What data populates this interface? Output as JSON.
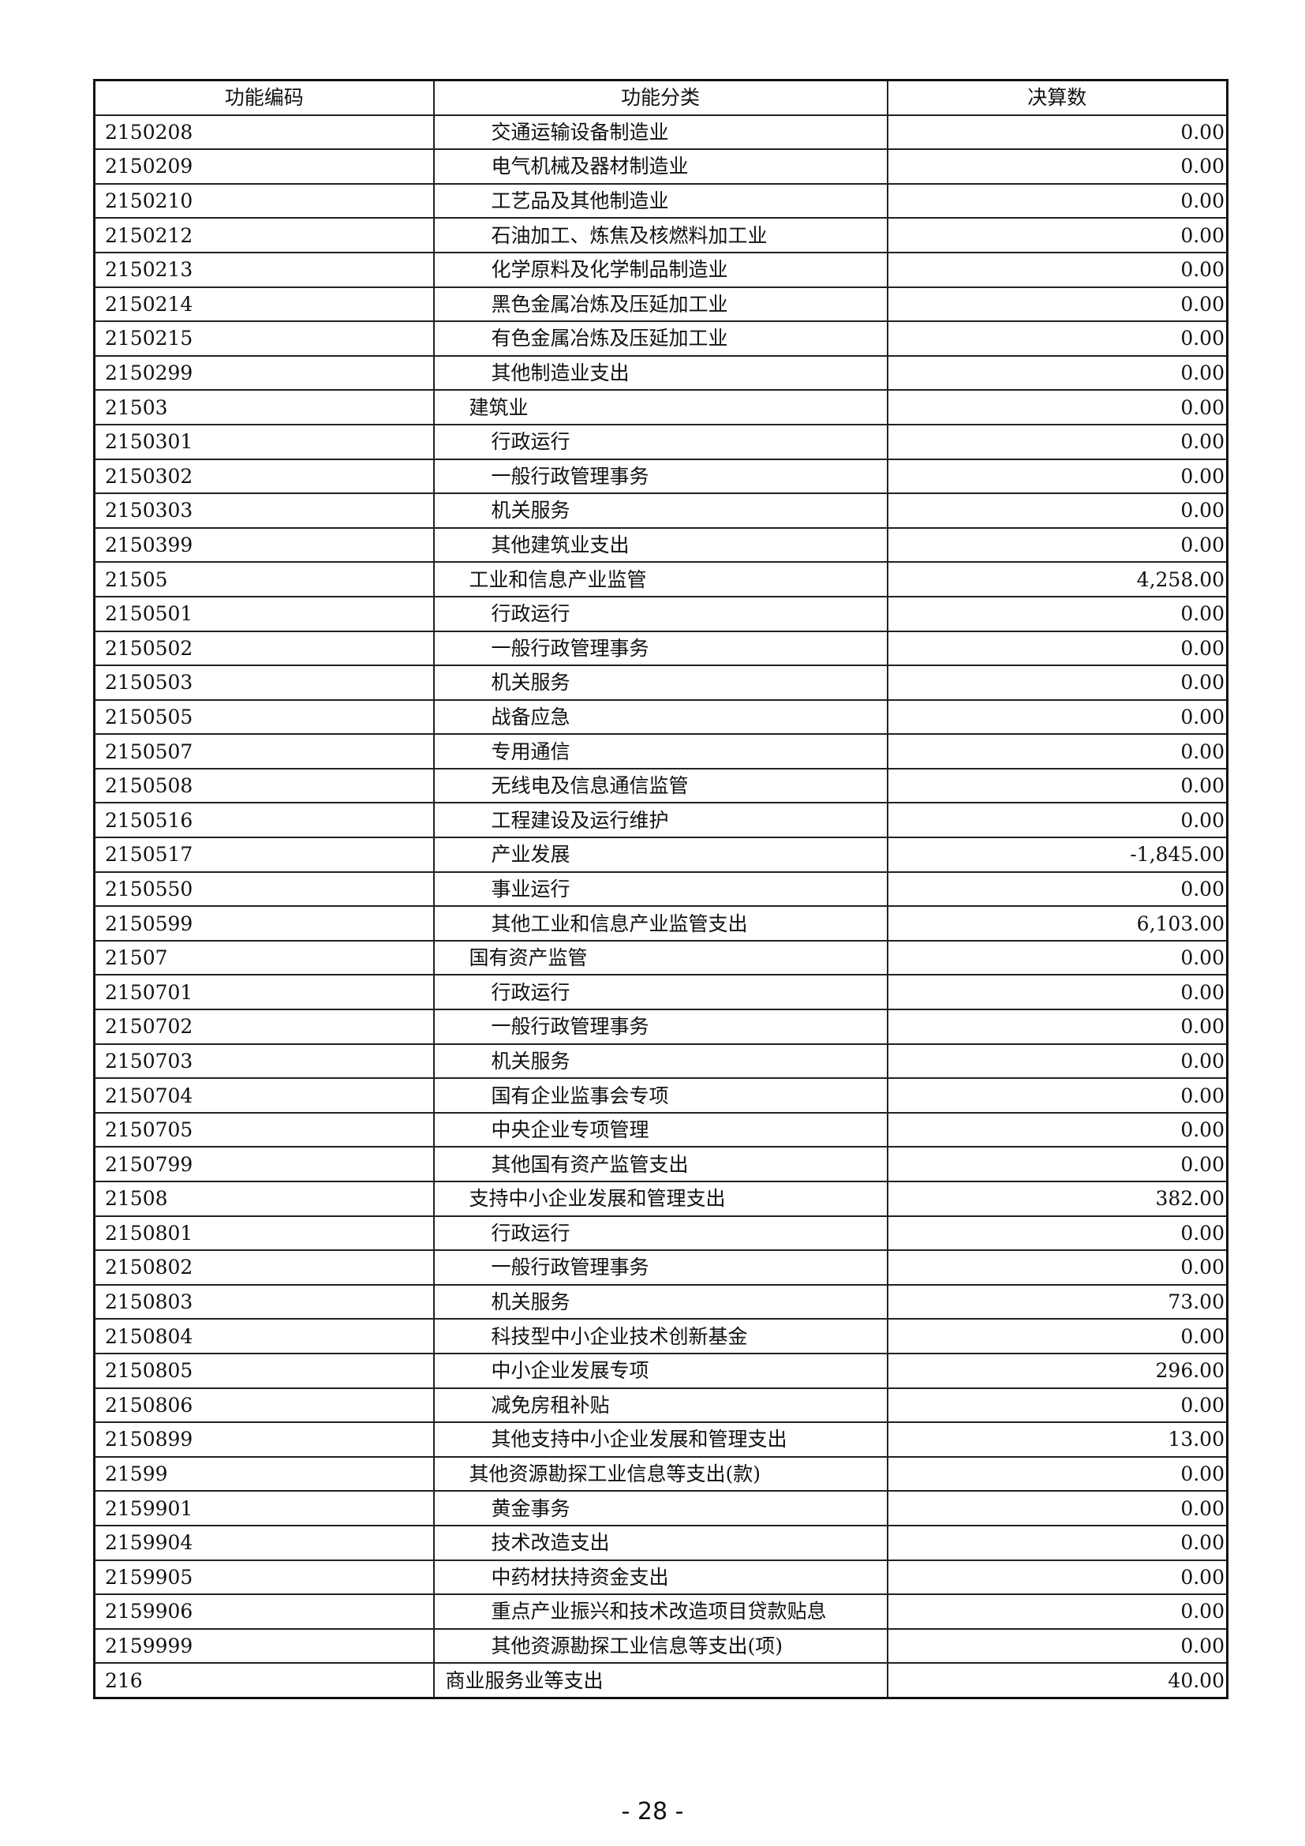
{
  "table": {
    "headers": [
      "功能编码",
      "功能分类",
      "决算数"
    ],
    "rows": [
      {
        "code": "2150208",
        "name": "交通运输设备制造业",
        "value": "0.00",
        "level": 3
      },
      {
        "code": "2150209",
        "name": "电气机械及器材制造业",
        "value": "0.00",
        "level": 3
      },
      {
        "code": "2150210",
        "name": "工艺品及其他制造业",
        "value": "0.00",
        "level": 3
      },
      {
        "code": "2150212",
        "name": "石油加工、炼焦及核燃料加工业",
        "value": "0.00",
        "level": 3
      },
      {
        "code": "2150213",
        "name": "化学原料及化学制品制造业",
        "value": "0.00",
        "level": 3
      },
      {
        "code": "2150214",
        "name": "黑色金属冶炼及压延加工业",
        "value": "0.00",
        "level": 3
      },
      {
        "code": "2150215",
        "name": "有色金属冶炼及压延加工业",
        "value": "0.00",
        "level": 3
      },
      {
        "code": "2150299",
        "name": "其他制造业支出",
        "value": "0.00",
        "level": 3
      },
      {
        "code": "21503",
        "name": "建筑业",
        "value": "0.00",
        "level": 2
      },
      {
        "code": "2150301",
        "name": "行政运行",
        "value": "0.00",
        "level": 3
      },
      {
        "code": "2150302",
        "name": "一般行政管理事务",
        "value": "0.00",
        "level": 3
      },
      {
        "code": "2150303",
        "name": "机关服务",
        "value": "0.00",
        "level": 3
      },
      {
        "code": "2150399",
        "name": "其他建筑业支出",
        "value": "0.00",
        "level": 3
      },
      {
        "code": "21505",
        "name": "工业和信息产业监管",
        "value": "4,258.00",
        "level": 2
      },
      {
        "code": "2150501",
        "name": "行政运行",
        "value": "0.00",
        "level": 3
      },
      {
        "code": "2150502",
        "name": "一般行政管理事务",
        "value": "0.00",
        "level": 3
      },
      {
        "code": "2150503",
        "name": "机关服务",
        "value": "0.00",
        "level": 3
      },
      {
        "code": "2150505",
        "name": "战备应急",
        "value": "0.00",
        "level": 3
      },
      {
        "code": "2150507",
        "name": "专用通信",
        "value": "0.00",
        "level": 3
      },
      {
        "code": "2150508",
        "name": "无线电及信息通信监管",
        "value": "0.00",
        "level": 3
      },
      {
        "code": "2150516",
        "name": "工程建设及运行维护",
        "value": "0.00",
        "level": 3
      },
      {
        "code": "2150517",
        "name": "产业发展",
        "value": "-1,845.00",
        "level": 3
      },
      {
        "code": "2150550",
        "name": "事业运行",
        "value": "0.00",
        "level": 3
      },
      {
        "code": "2150599",
        "name": "其他工业和信息产业监管支出",
        "value": "6,103.00",
        "level": 3
      },
      {
        "code": "21507",
        "name": "国有资产监管",
        "value": "0.00",
        "level": 2
      },
      {
        "code": "2150701",
        "name": "行政运行",
        "value": "0.00",
        "level": 3
      },
      {
        "code": "2150702",
        "name": "一般行政管理事务",
        "value": "0.00",
        "level": 3
      },
      {
        "code": "2150703",
        "name": "机关服务",
        "value": "0.00",
        "level": 3
      },
      {
        "code": "2150704",
        "name": "国有企业监事会专项",
        "value": "0.00",
        "level": 3
      },
      {
        "code": "2150705",
        "name": "中央企业专项管理",
        "value": "0.00",
        "level": 3
      },
      {
        "code": "2150799",
        "name": "其他国有资产监管支出",
        "value": "0.00",
        "level": 3
      },
      {
        "code": "21508",
        "name": "支持中小企业发展和管理支出",
        "value": "382.00",
        "level": 2
      },
      {
        "code": "2150801",
        "name": "行政运行",
        "value": "0.00",
        "level": 3
      },
      {
        "code": "2150802",
        "name": "一般行政管理事务",
        "value": "0.00",
        "level": 3
      },
      {
        "code": "2150803",
        "name": "机关服务",
        "value": "73.00",
        "level": 3
      },
      {
        "code": "2150804",
        "name": "科技型中小企业技术创新基金",
        "value": "0.00",
        "level": 3
      },
      {
        "code": "2150805",
        "name": "中小企业发展专项",
        "value": "296.00",
        "level": 3
      },
      {
        "code": "2150806",
        "name": "减免房租补贴",
        "value": "0.00",
        "level": 3
      },
      {
        "code": "2150899",
        "name": "其他支持中小企业发展和管理支出",
        "value": "13.00",
        "level": 3
      },
      {
        "code": "21599",
        "name": "其他资源勘探工业信息等支出(款)",
        "value": "0.00",
        "level": 2
      },
      {
        "code": "2159901",
        "name": "黄金事务",
        "value": "0.00",
        "level": 3
      },
      {
        "code": "2159904",
        "name": "技术改造支出",
        "value": "0.00",
        "level": 3
      },
      {
        "code": "2159905",
        "name": "中药材扶持资金支出",
        "value": "0.00",
        "level": 3
      },
      {
        "code": "2159906",
        "name": "重点产业振兴和技术改造项目贷款贴息",
        "value": "0.00",
        "level": 3
      },
      {
        "code": "2159999",
        "name": "其他资源勘探工业信息等支出(项)",
        "value": "0.00",
        "level": 3
      },
      {
        "code": "216",
        "name": "商业服务业等支出",
        "value": "40.00",
        "level": 1
      }
    ]
  },
  "page_number": "- 28 -"
}
